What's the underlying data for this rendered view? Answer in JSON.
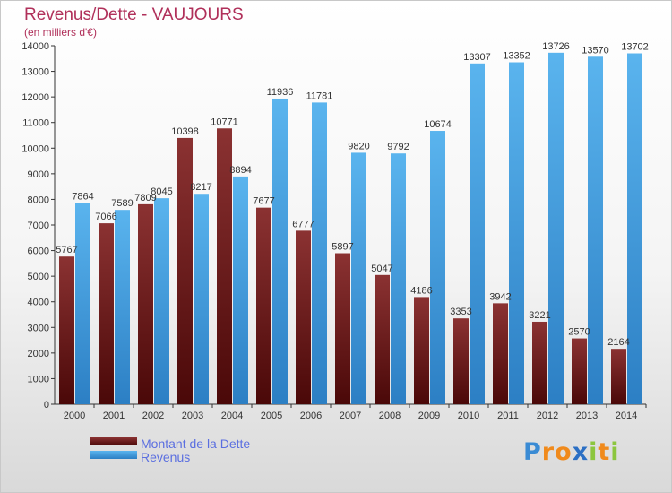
{
  "header": {
    "title": "Revenus/Dette - VAUJOURS",
    "subtitle": "(en milliers d'€)"
  },
  "legend": {
    "debt_label": "Montant de la Dette",
    "revenue_label": "Revenus"
  },
  "logo": {
    "text": "Proxiti",
    "letters": [
      "P",
      "r",
      "o",
      "x",
      "i",
      "t",
      "i"
    ],
    "colors": [
      "#3a8bd4",
      "#f08a1c",
      "#f08a1c",
      "#2b6fc4",
      "#8cc63e",
      "#f08a1c",
      "#8cc63e"
    ]
  },
  "colors": {
    "debt_light": "#8b3232",
    "debt_dark": "#4a0808",
    "revenue_light": "#5ab4ee",
    "revenue_dark": "#2c7fc4",
    "title": "#b0305a",
    "legend_text": "#5b6fe0"
  },
  "chart_data": {
    "type": "bar",
    "title": "Revenus/Dette - VAUJOURS",
    "subtitle": "(en milliers d'€)",
    "categories": [
      "2000",
      "2001",
      "2002",
      "2003",
      "2004",
      "2005",
      "2006",
      "2007",
      "2008",
      "2009",
      "2010",
      "2011",
      "2012",
      "2013",
      "2014"
    ],
    "series": [
      {
        "name": "Montant de la Dette",
        "values": [
          5767,
          7066,
          7809,
          10398,
          10771,
          7677,
          6777,
          5897,
          5047,
          4186,
          3353,
          3942,
          3221,
          2570,
          2164
        ],
        "labels": [
          "5767",
          "7066",
          "7809",
          "10398",
          "10771",
          "7677",
          "6777",
          "5897",
          "5047",
          "4186",
          "3353",
          "3942",
          "3221",
          "2570",
          "2164"
        ]
      },
      {
        "name": "Revenus",
        "values": [
          7864,
          7589,
          8045,
          8217,
          8894,
          11936,
          11781,
          9820,
          9792,
          10674,
          13307,
          13352,
          13726,
          13570,
          13702
        ],
        "labels": [
          "7864",
          "7589",
          "8045",
          "8217",
          "8894",
          "11936",
          "11781",
          "9820",
          "9792",
          "10674",
          "13307",
          "13352",
          "13726",
          "13570",
          "13702"
        ]
      }
    ],
    "yticks": [
      "0",
      "1000",
      "2000",
      "3000",
      "4000",
      "5000",
      "6000",
      "7000",
      "8000",
      "9000",
      "10000",
      "11000",
      "12000",
      "13000",
      "14000"
    ],
    "ylim": [
      0,
      14000
    ],
    "grid": false,
    "legend_position": "bottom-left"
  }
}
